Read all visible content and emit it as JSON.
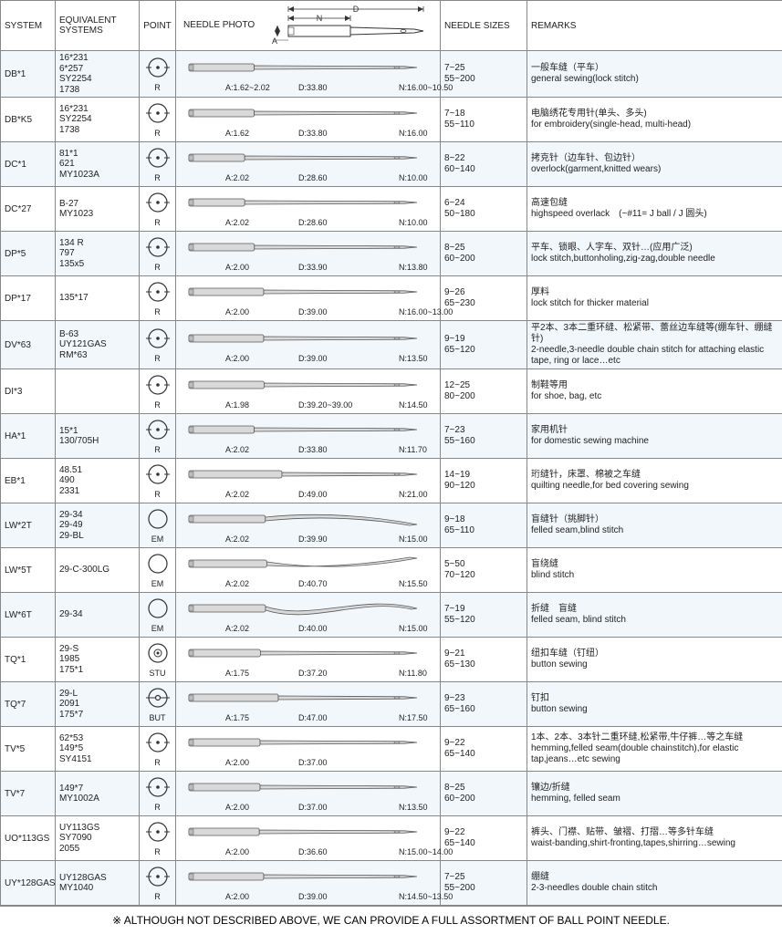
{
  "columns": {
    "system": "SYSTEM",
    "equiv": "EQUIVALENT SYSTEMS",
    "point": "POINT",
    "photo": "NEEDLE PHOTO",
    "sizes": "NEEDLE SIZES",
    "remarks": "REMARKS"
  },
  "diagram_labels": {
    "D": "D",
    "N": "N",
    "A": "A"
  },
  "footer": "※ ALTHOUGH NOT DESCRIBED ABOVE, WE CAN PROVIDE A FULL ASSORTMENT OF BALL POINT NEEDLE.",
  "note11": "(~#11= J ball / J 圆头)",
  "colors": {
    "border": "#888888",
    "even_row_bg": "#f2f7fb",
    "odd_row_bg": "#ffffff",
    "text": "#222222",
    "needle_stroke": "#5a5a5a",
    "needle_fill": "#d9d9d9"
  },
  "rows": [
    {
      "system": "DB*1",
      "equiv": [
        "16*231",
        "6*257",
        "SY2254",
        "1738"
      ],
      "point_type": "R",
      "dims": {
        "A": "1.62~2.02",
        "D": "33.80",
        "N": "16.00~10.50"
      },
      "sizes": [
        "7~25",
        "55~200"
      ],
      "remarks_cn": "一般车缝（平车）",
      "remarks_en": "general sewing(lock stitch)"
    },
    {
      "system": "DB*K5",
      "equiv": [
        "16*231",
        "SY2254",
        "1738"
      ],
      "point_type": "R",
      "dims": {
        "A": "1.62",
        "D": "33.80",
        "N": "16.00"
      },
      "sizes": [
        "7~18",
        "55~110"
      ],
      "remarks_cn": "电脑绣花专用针(单头、多头)",
      "remarks_en": "for embroidery(single-head, multi-head)"
    },
    {
      "system": "DC*1",
      "equiv": [
        "81*1",
        "621",
        "MY1023A"
      ],
      "point_type": "R",
      "dims": {
        "A": "2.02",
        "D": "28.60",
        "N": "10.00"
      },
      "sizes": [
        "8~22",
        "60~140"
      ],
      "remarks_cn": "拷克针（边车针、包边针）",
      "remarks_en": "overlock(garment,knitted wears)"
    },
    {
      "system": "DC*27",
      "equiv": [
        "B-27",
        "MY1023"
      ],
      "point_type": "R",
      "dims": {
        "A": "2.02",
        "D": "28.60",
        "N": "10.00"
      },
      "sizes": [
        "6~24",
        "50~180"
      ],
      "remarks_cn": "高速包缝",
      "remarks_en": "highspeed overlack",
      "extra_note": true
    },
    {
      "system": "DP*5",
      "equiv": [
        "134 R",
        "797",
        "135x5"
      ],
      "point_type": "R",
      "dims": {
        "A": "2.00",
        "D": "33.90",
        "N": "13.80"
      },
      "sizes": [
        "8~25",
        "60~200"
      ],
      "remarks_cn": "平车、锁眼、人字车、双针…(应用广泛)",
      "remarks_en": "lock stitch,buttonholing,zig-zag,double needle"
    },
    {
      "system": "DP*17",
      "equiv": [
        "135*17"
      ],
      "point_type": "R",
      "dims": {
        "A": "2.00",
        "D": "39.00",
        "N": "16.00~13.00"
      },
      "sizes": [
        "9~26",
        "65~230"
      ],
      "remarks_cn": "厚料",
      "remarks_en": "lock stitch for thicker material"
    },
    {
      "system": "DV*63",
      "equiv": [
        "B-63",
        "UY121GAS",
        "RM*63"
      ],
      "point_type": "R",
      "dims": {
        "A": "2.00",
        "D": "39.00",
        "N": "13.50"
      },
      "sizes": [
        "9~19",
        "65~120"
      ],
      "remarks_cn": "平2本、3本二重环缝、松紧带、蕾丝边车缝等(绷车针、绷缝针)",
      "remarks_en": "2-needle,3-needle double chain stitch for attaching elastic tape, ring or lace…etc"
    },
    {
      "system": "DI*3",
      "equiv": [],
      "point_type": "R",
      "dims": {
        "A": "1.98",
        "D": "39.20~39.00",
        "N": "14.50"
      },
      "sizes": [
        "12~25",
        "80~200"
      ],
      "remarks_cn": "制鞋等用",
      "remarks_en": "for shoe, bag, etc"
    },
    {
      "system": "HA*1",
      "equiv": [
        "15*1",
        "130/705H"
      ],
      "point_type": "R",
      "dims": {
        "A": "2.02",
        "D": "33.80",
        "N": "11.70"
      },
      "sizes": [
        "7~23",
        "55~160"
      ],
      "remarks_cn": "家用机针",
      "remarks_en": "for domestic sewing machine"
    },
    {
      "system": "EB*1",
      "equiv": [
        "48.51",
        "490",
        "2331"
      ],
      "point_type": "R",
      "dims": {
        "A": "2.02",
        "D": "49.00",
        "N": "21.00"
      },
      "sizes": [
        "14~19",
        "90~120"
      ],
      "remarks_cn": "珩缝针，床罩、棉被之车缝",
      "remarks_en": "quilting needle,for bed covering sewing"
    },
    {
      "system": "LW*2T",
      "equiv": [
        "29-34",
        "29-49",
        "29-BL"
      ],
      "point_type": "EM",
      "curve": "down",
      "dims": {
        "A": "2.02",
        "D": "39.90",
        "N": "15.00"
      },
      "sizes": [
        "9~18",
        "65~110"
      ],
      "remarks_cn": "盲缝针（挑脚针）",
      "remarks_en": "felled seam,blind stitch"
    },
    {
      "system": "LW*5T",
      "equiv": [
        "29-C-300LG"
      ],
      "point_type": "EM",
      "curve": "up",
      "dims": {
        "A": "2.02",
        "D": "40.70",
        "N": "15.50"
      },
      "sizes": [
        "5~50",
        "70~120"
      ],
      "remarks_cn": "盲绕缝",
      "remarks_en": "blind stitch"
    },
    {
      "system": "LW*6T",
      "equiv": [
        "29-34"
      ],
      "point_type": "EM",
      "curve": "s",
      "dims": {
        "A": "2.02",
        "D": "40.00",
        "N": "15.00"
      },
      "sizes": [
        "7~19",
        "55~120"
      ],
      "remarks_cn": "折缝　盲缝",
      "remarks_en": "felled seam, blind stitch"
    },
    {
      "system": "TQ*1",
      "equiv": [
        "29-S",
        "1985",
        "175*1"
      ],
      "point_type": "STU",
      "dims": {
        "A": "1.75",
        "D": "37.20",
        "N": "11.80"
      },
      "sizes": [
        "9~21",
        "65~130"
      ],
      "remarks_cn": "纽扣车缝（钉纽）",
      "remarks_en": "button sewing"
    },
    {
      "system": "TQ*7",
      "equiv": [
        "29-L",
        "2091",
        "175*7"
      ],
      "point_type": "BUT",
      "dims": {
        "A": "1.75",
        "D": "47.00",
        "N": "17.50"
      },
      "sizes": [
        "9~23",
        "65~160"
      ],
      "remarks_cn": "钉扣",
      "remarks_en": "button sewing"
    },
    {
      "system": "TV*5",
      "equiv": [
        "62*53",
        "149*5",
        "SY4151"
      ],
      "point_type": "R",
      "dims": {
        "A": "2.00",
        "D": "37.00",
        "N": ""
      },
      "sizes": [
        "9~22",
        "65~140"
      ],
      "remarks_cn": "1本、2本、3本针二重环缝,松紧带,牛仔裤…等之车缝",
      "remarks_en": "hemming,felled seam(double chainstitch),for elastic tap,jeans…etc sewing"
    },
    {
      "system": "TV*7",
      "equiv": [
        "149*7",
        "MY1002A"
      ],
      "point_type": "R",
      "dims": {
        "A": "2.00",
        "D": "37.00",
        "N": "13.50"
      },
      "sizes": [
        "8~25",
        "60~200"
      ],
      "remarks_cn": "镶边/折缝",
      "remarks_en": "hemming, felled seam"
    },
    {
      "system": "UO*113GS",
      "equiv": [
        "UY113GS",
        "SY7090",
        "2055"
      ],
      "point_type": "R",
      "dims": {
        "A": "2.00",
        "D": "36.60",
        "N": "15.00~14.00"
      },
      "sizes": [
        "9~22",
        "65~140"
      ],
      "remarks_cn": "裤头、门襟、贴带、皱褶、打摺…等多针车缝",
      "remarks_en": "waist-banding,shirt-fronting,tapes,shirring…sewing"
    },
    {
      "system": "UY*128GAS",
      "equiv": [
        "UY128GAS",
        "MY1040"
      ],
      "point_type": "R",
      "dims": {
        "A": "2.00",
        "D": "39.00",
        "N": "14.50~13.50"
      },
      "sizes": [
        "7~25",
        "55~200"
      ],
      "remarks_cn": "绷缝",
      "remarks_en": "2-3-needles double chain stitch"
    }
  ]
}
